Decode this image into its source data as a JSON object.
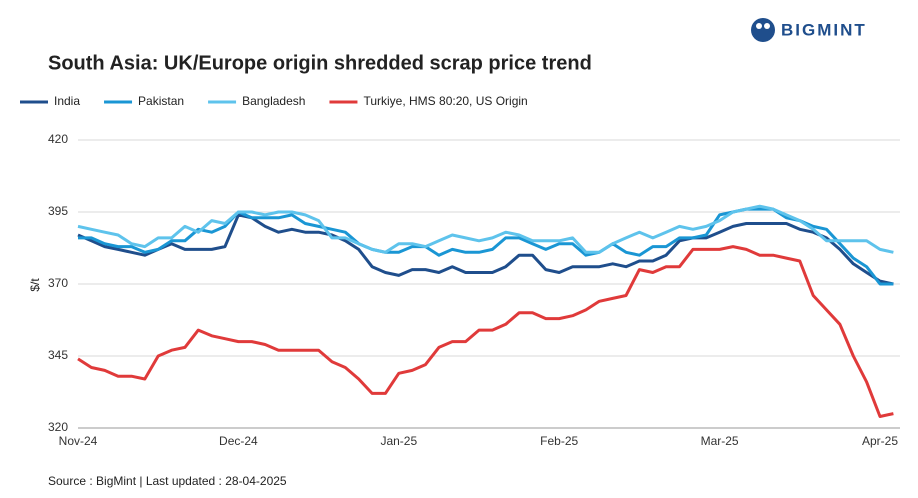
{
  "logo": "BIGMINT",
  "chart_data": {
    "type": "line",
    "title": "South Asia: UK/Europe origin shredded scrap price trend",
    "y_label": "$/t",
    "source": "Source : BigMint | Last updated : 28-04-2025",
    "categories": [
      "Nov-24",
      null,
      null,
      null,
      null,
      null,
      null,
      null,
      null,
      null,
      null,
      null,
      "Dec-24",
      null,
      null,
      null,
      null,
      null,
      null,
      null,
      null,
      null,
      null,
      null,
      "Jan-25",
      null,
      null,
      null,
      null,
      null,
      null,
      null,
      null,
      null,
      null,
      null,
      "Feb-25",
      null,
      null,
      null,
      null,
      null,
      null,
      null,
      null,
      null,
      null,
      null,
      "Mar-25",
      null,
      null,
      null,
      null,
      null,
      null,
      null,
      null,
      null,
      null,
      null,
      "Apr-25",
      null
    ],
    "ylim": [
      320,
      420
    ],
    "yticks": [
      320,
      345,
      370,
      395,
      420
    ],
    "grid": true,
    "series": [
      {
        "name": "India",
        "color": "#1f4e8c",
        "values": [
          387,
          385,
          383,
          382,
          381,
          380,
          382,
          384,
          382,
          382,
          382,
          383,
          394,
          393,
          390,
          388,
          389,
          388,
          388,
          387,
          385,
          382,
          376,
          374,
          373,
          375,
          375,
          374,
          376,
          374,
          374,
          374,
          376,
          380,
          380,
          375,
          374,
          376,
          376,
          376,
          377,
          376,
          378,
          378,
          380,
          385,
          386,
          386,
          388,
          390,
          391,
          391,
          391,
          391,
          389,
          388,
          386,
          382,
          377,
          374,
          371,
          370
        ]
      },
      {
        "name": "Pakistan",
        "color": "#1a96d4",
        "values": [
          386,
          386,
          384,
          383,
          383,
          381,
          382,
          385,
          385,
          389,
          388,
          390,
          395,
          393,
          393,
          393,
          394,
          391,
          390,
          389,
          388,
          384,
          382,
          381,
          381,
          383,
          383,
          380,
          382,
          381,
          381,
          382,
          386,
          386,
          384,
          382,
          384,
          384,
          380,
          381,
          384,
          381,
          380,
          383,
          383,
          386,
          386,
          387,
          394,
          395,
          396,
          396,
          396,
          393,
          392,
          390,
          389,
          384,
          379,
          376,
          370,
          370
        ]
      },
      {
        "name": "Bangladesh",
        "color": "#5ec3ec",
        "values": [
          390,
          389,
          388,
          387,
          384,
          383,
          386,
          386,
          390,
          388,
          392,
          391,
          395,
          395,
          394,
          395,
          395,
          394,
          392,
          386,
          386,
          384,
          382,
          381,
          384,
          384,
          383,
          385,
          387,
          386,
          385,
          386,
          388,
          387,
          385,
          385,
          385,
          386,
          381,
          381,
          384,
          386,
          388,
          386,
          388,
          390,
          389,
          390,
          392,
          395,
          396,
          397,
          396,
          394,
          392,
          389,
          385,
          385,
          385,
          385,
          382,
          381
        ]
      },
      {
        "name": "Turkiye, HMS 80:20, US Origin",
        "color": "#e03a3a",
        "values": [
          344,
          341,
          340,
          338,
          338,
          337,
          345,
          347,
          348,
          354,
          352,
          351,
          350,
          350,
          349,
          347,
          347,
          347,
          347,
          343,
          341,
          337,
          332,
          332,
          339,
          340,
          342,
          348,
          350,
          350,
          354,
          354,
          356,
          360,
          360,
          358,
          358,
          359,
          361,
          364,
          365,
          366,
          375,
          374,
          376,
          376,
          382,
          382,
          382,
          383,
          382,
          380,
          380,
          379,
          378,
          366,
          361,
          356,
          345,
          336,
          324,
          325
        ]
      }
    ]
  }
}
